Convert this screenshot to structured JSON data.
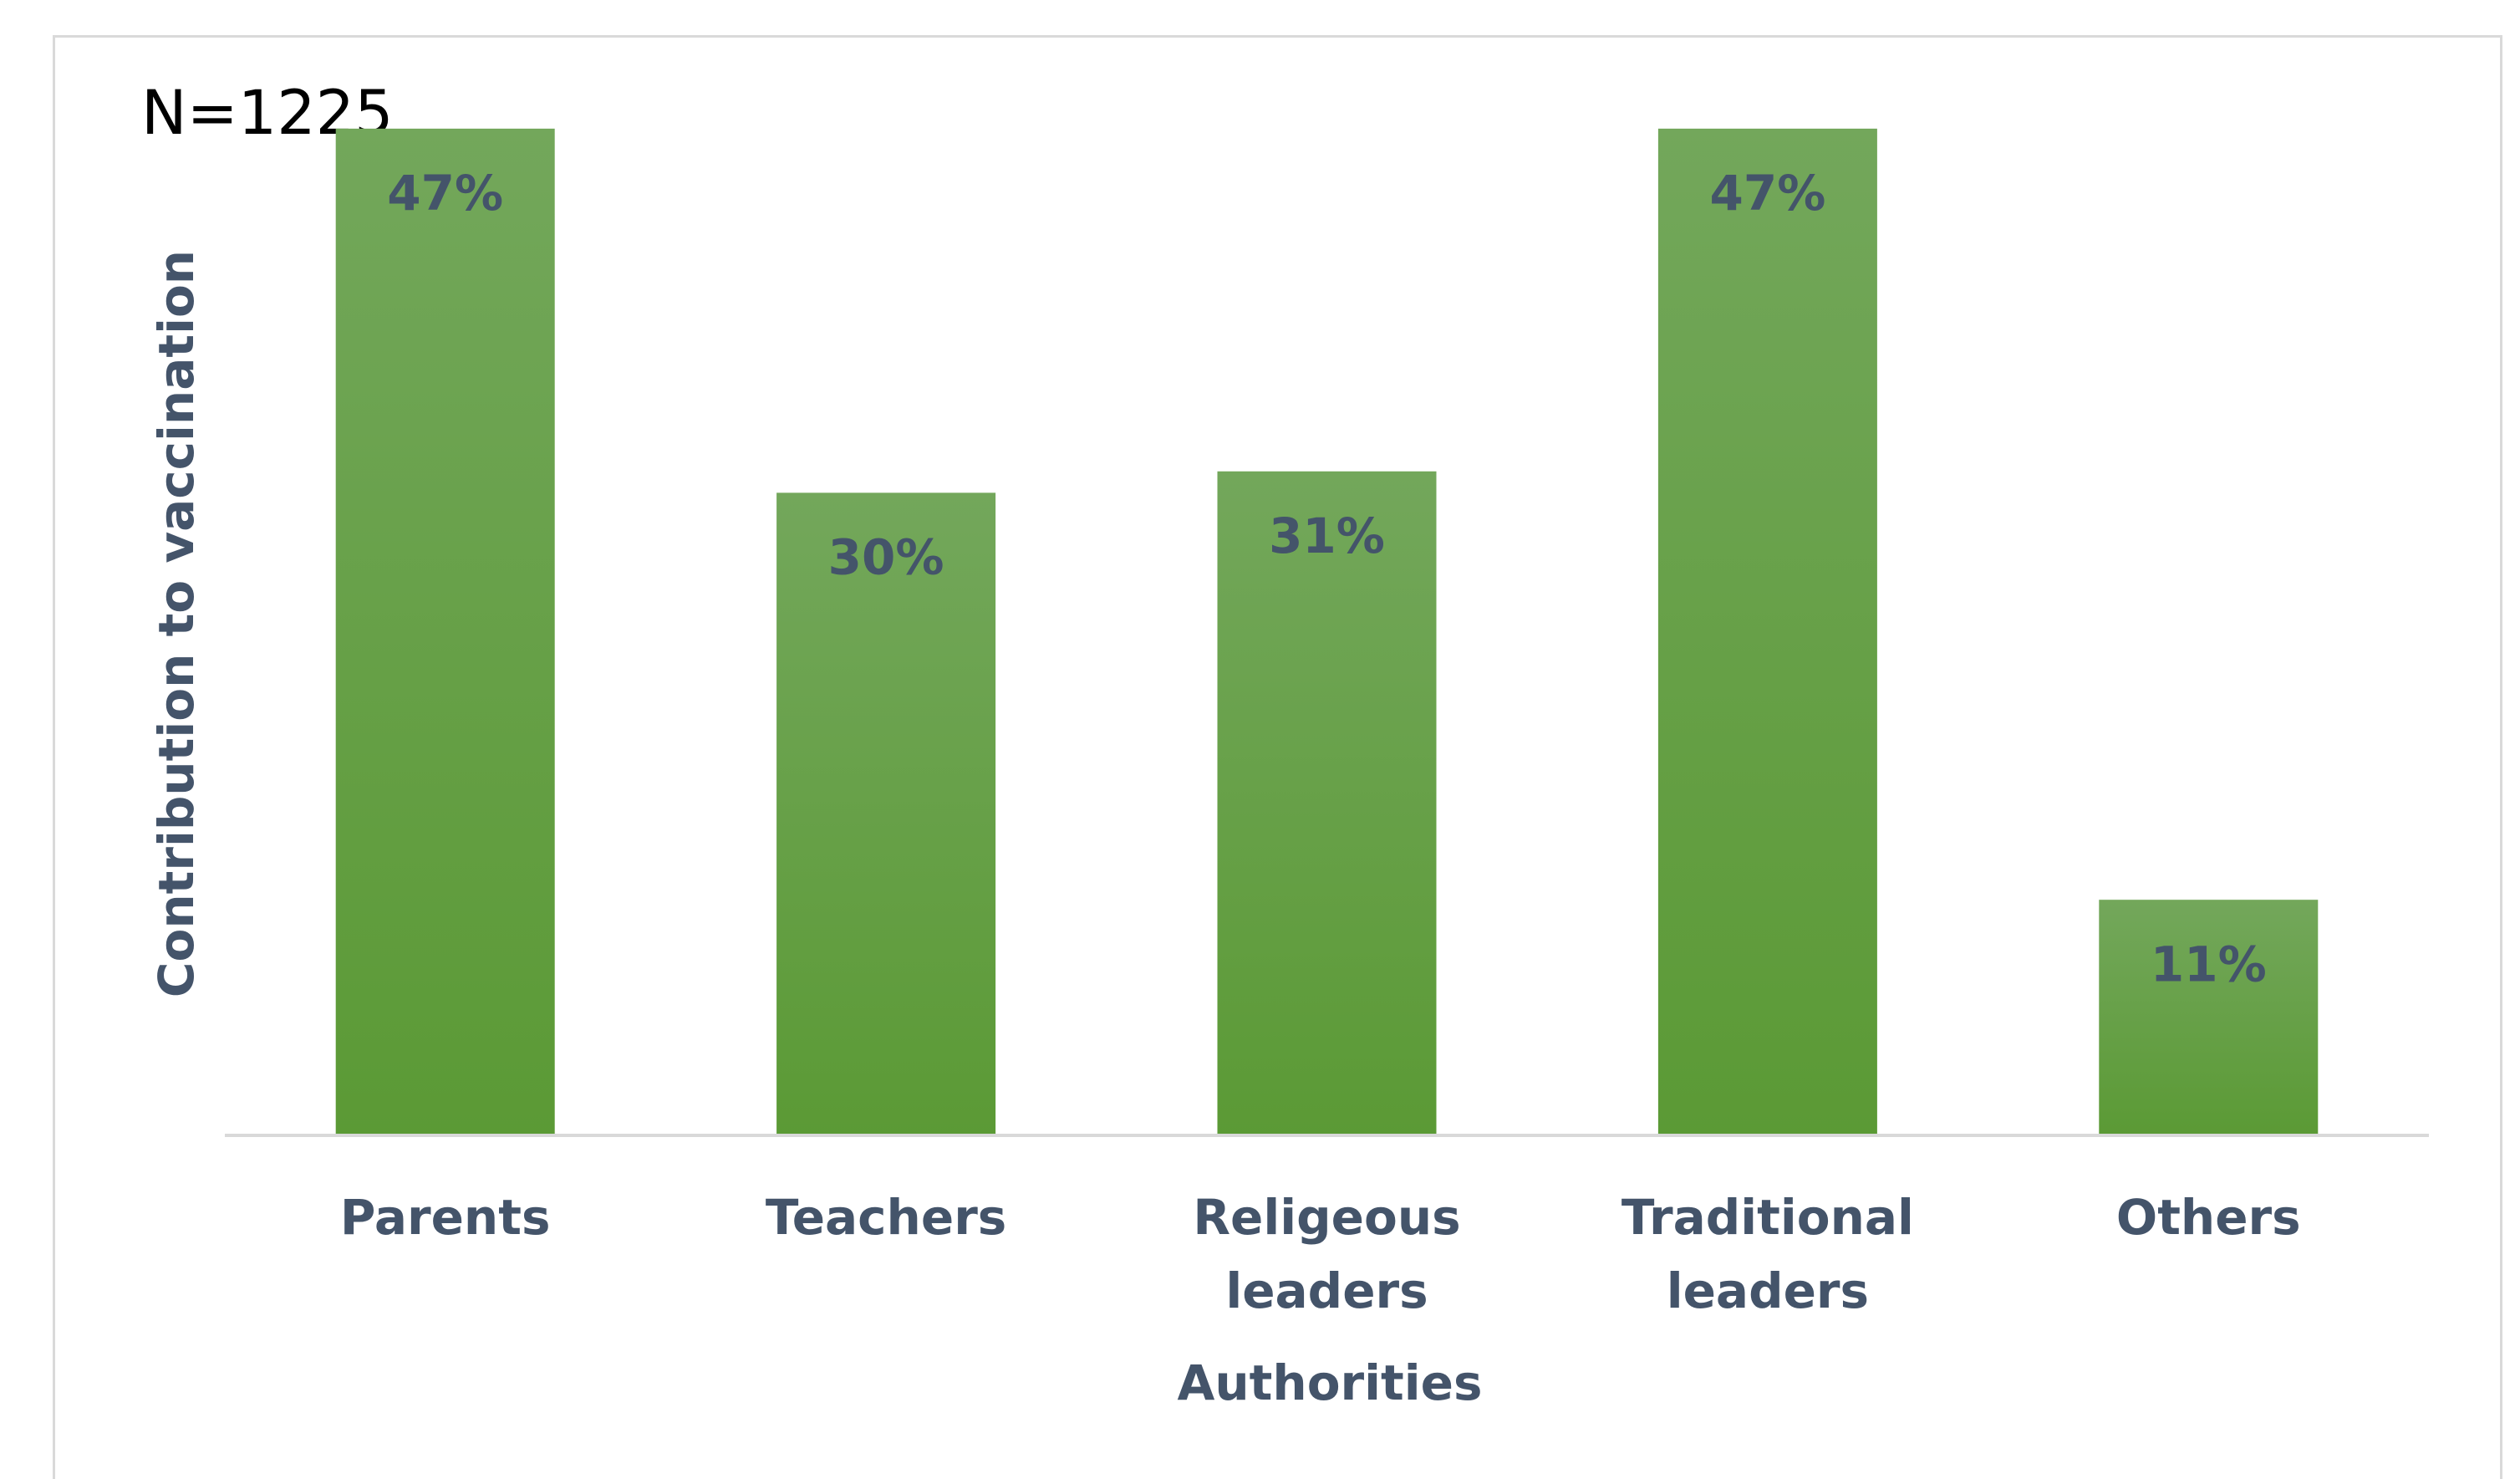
{
  "chart_data": {
    "type": "bar",
    "annotation": "N=1225",
    "ylabel": "Contribution to vaccination",
    "xlabel": "Authorities",
    "categories": [
      "Parents",
      "Teachers",
      "Religeous leaders",
      "Traditional leaders",
      "Others"
    ],
    "values": [
      47,
      30,
      31,
      47,
      11
    ],
    "value_labels": [
      "47%",
      "30%",
      "31%",
      "47%",
      "11%"
    ],
    "color": "#5b9a35",
    "ylim": [
      0,
      50
    ]
  }
}
